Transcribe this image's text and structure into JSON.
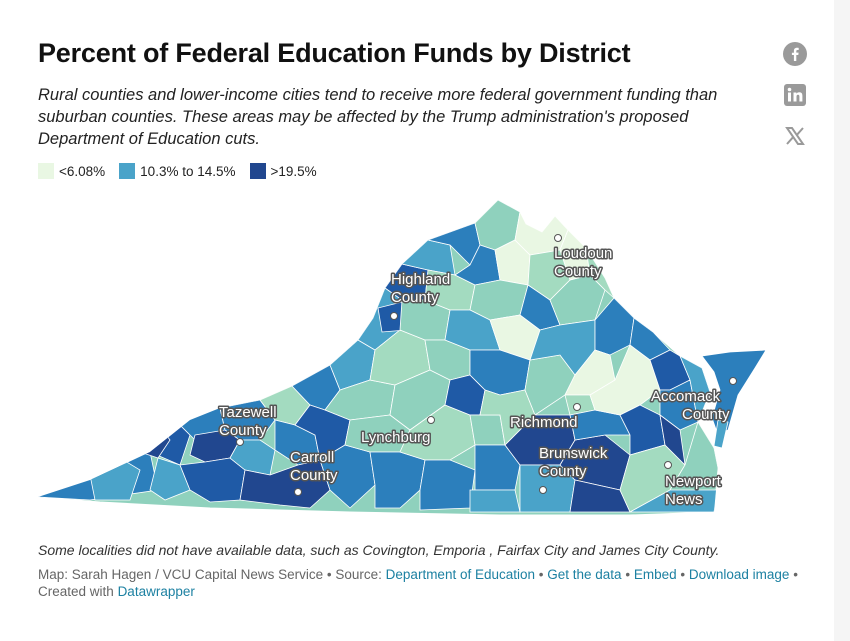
{
  "title": "Percent of Federal Education Funds by District",
  "subtitle": "Rural counties and lower-income cities tend to receive more federal government funding than suburban counties. These areas may be affected by the Trump administration's proposed Department of Education cuts.",
  "legend": [
    {
      "label": "<6.08%",
      "color": "#e9f7e3"
    },
    {
      "label": "10.3% to 14.5%",
      "color": "#4aa3c9"
    },
    {
      "label": ">19.5%",
      "color": "#21478f"
    }
  ],
  "palette": [
    "#e9f7e3",
    "#a3dbc0",
    "#8fd1bd",
    "#4aa3c9",
    "#2c7fbc",
    "#1f5aa6",
    "#21478f"
  ],
  "share_icons": [
    "facebook-icon",
    "linkedin-icon",
    "x-icon"
  ],
  "map_labels": {
    "loudoun": [
      "Loudoun",
      "County"
    ],
    "highland": [
      "Highland",
      "County"
    ],
    "accomack": [
      "Accomack",
      "County"
    ],
    "tazewell": [
      "Tazewell",
      "County"
    ],
    "richmond": [
      "Richmond"
    ],
    "lynchburg": [
      "Lynchburg"
    ],
    "brunswick": [
      "Brunswick",
      "County"
    ],
    "carroll": [
      "Carroll",
      "County"
    ],
    "newport": [
      "Newport",
      "News"
    ]
  },
  "notes": "Some localities did not have available data, such as Covington, Emporia , Fairfax City and James City County.",
  "footer": {
    "credit": "Map: Sarah Hagen / VCU Capital News Service",
    "source_prefix": "Source:",
    "source_link": "Department of Education",
    "get_data": "Get the data",
    "embed": "Embed",
    "download": "Download image",
    "created_prefix": "Created with",
    "created_link": "Datawrapper"
  }
}
